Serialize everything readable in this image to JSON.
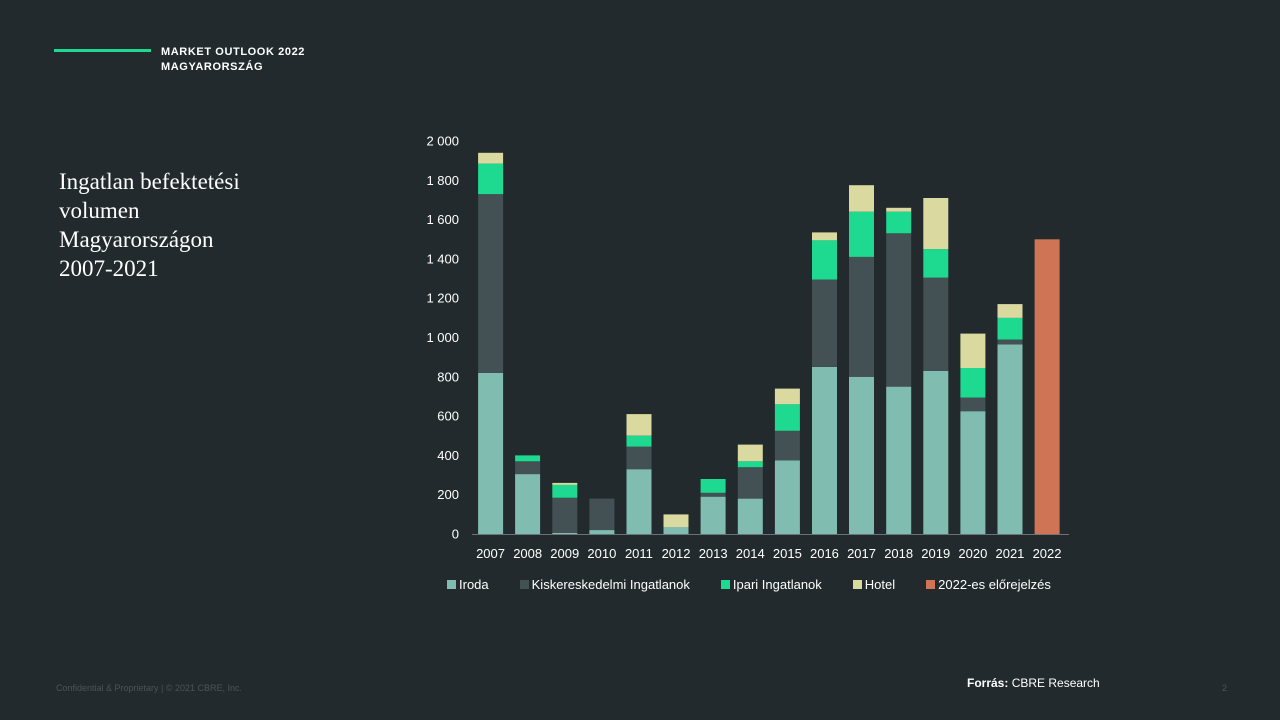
{
  "header": {
    "line1": "MARKET OUTLOOK 2022",
    "line2": "MAGYARORSZÁG"
  },
  "title": [
    "Ingatlan befektetési",
    "volumen",
    "Magyarországon",
    "2007-2021"
  ],
  "colors": {
    "background": "#222a2d",
    "accent": "#1ed990",
    "iroda": "#80bdb0",
    "kiskereskedelmi": "#435155",
    "ipari": "#1ed990",
    "hotel": "#d9d9a0",
    "forecast": "#cf7555"
  },
  "chart_data": {
    "type": "bar",
    "stacked": true,
    "categories": [
      "2007",
      "2008",
      "2009",
      "2010",
      "2011",
      "2012",
      "2013",
      "2014",
      "2015",
      "2016",
      "2017",
      "2018",
      "2019",
      "2020",
      "2021",
      "2022"
    ],
    "ylim": [
      0,
      2000
    ],
    "yticks": [
      "0",
      "200",
      "400",
      "600",
      "800",
      "1 000",
      "1 200",
      "1 400",
      "1 600",
      "1 800",
      "2 000"
    ],
    "series": [
      {
        "name": "Iroda",
        "color": "#80bdb0",
        "values": [
          820,
          305,
          5,
          20,
          330,
          35,
          190,
          180,
          375,
          850,
          800,
          750,
          830,
          625,
          965,
          0
        ]
      },
      {
        "name": "Kiskereskedelmi Ingatlanok",
        "color": "#435155",
        "values": [
          910,
          65,
          180,
          160,
          115,
          0,
          20,
          160,
          150,
          445,
          610,
          780,
          475,
          70,
          25,
          0
        ]
      },
      {
        "name": "Ipari Ingatlanok",
        "color": "#1ed990",
        "values": [
          155,
          30,
          65,
          0,
          55,
          0,
          70,
          30,
          135,
          200,
          230,
          110,
          145,
          150,
          110,
          0
        ]
      },
      {
        "name": "Hotel",
        "color": "#d9d9a0",
        "values": [
          55,
          0,
          10,
          0,
          110,
          65,
          0,
          85,
          80,
          40,
          135,
          20,
          260,
          175,
          70,
          0
        ]
      },
      {
        "name": "2022-es előrejelzés",
        "color": "#cf7555",
        "values": [
          0,
          0,
          0,
          0,
          0,
          0,
          0,
          0,
          0,
          0,
          0,
          0,
          0,
          0,
          0,
          1500
        ]
      }
    ]
  },
  "source": {
    "label": "Forrás:",
    "text": "CBRE Research"
  },
  "footer": {
    "confidential": "Confidential & Proprietary | © 2021 CBRE, Inc.",
    "page": "2"
  }
}
